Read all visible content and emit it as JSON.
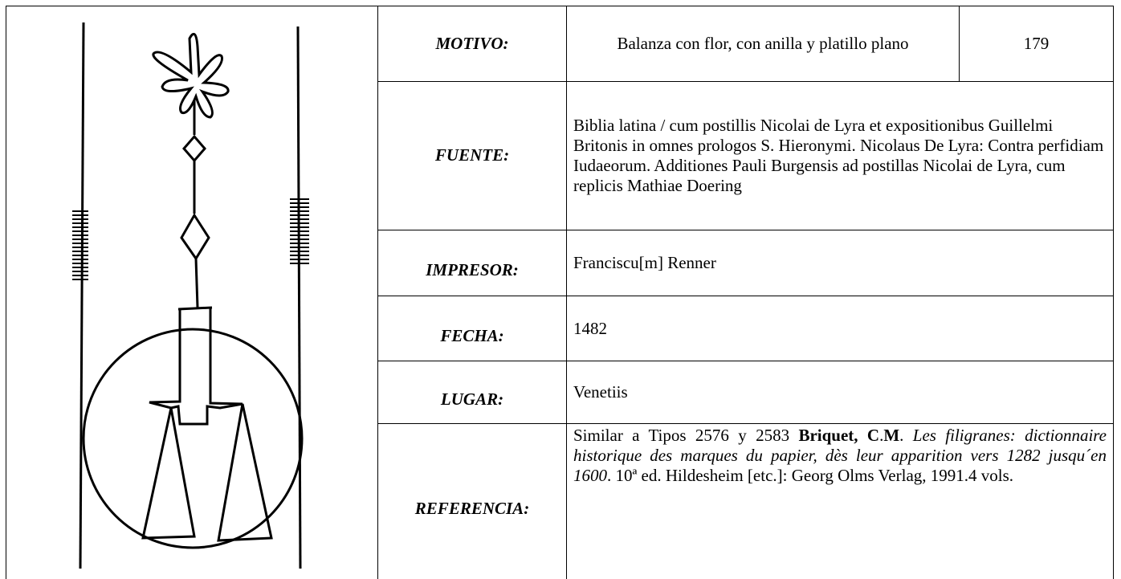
{
  "entry": {
    "motivo": {
      "label": "MOTIVO:",
      "value": "Balanza con flor, con anilla y platillo plano",
      "number": "179"
    },
    "fuente": {
      "label": "FUENTE:",
      "value": "Biblia latina / cum postillis Nicolai de Lyra et expositionibus Guillelmi Britonis in omnes prologos S. Hieronymi. Nicolaus De Lyra: Contra perfidiam Iudaeorum. Additiones Pauli Burgensis ad postillas Nicolai de Lyra, cum replicis Mathiae Doering"
    },
    "impresor": {
      "label": "IMPRESOR:",
      "value": "Franciscu[m] Renner"
    },
    "fecha": {
      "label": "FECHA:",
      "value": "1482"
    },
    "lugar": {
      "label": "LUGAR:",
      "value": "Venetiis"
    },
    "referencia": {
      "label": "REFERENCIA:",
      "parts": [
        "Similar a Tipos 2576 y 2583 ",
        "Briquet, C",
        ".",
        "M",
        ". ",
        "Les filigranes: dictionnaire historique des marques du papier, dès leur apparition vers 1282 jusqu´en 1600",
        ". 10ª ed. Hildesheim [etc.]: Georg Olms Verlag, 1991.4 vols."
      ]
    }
  }
}
